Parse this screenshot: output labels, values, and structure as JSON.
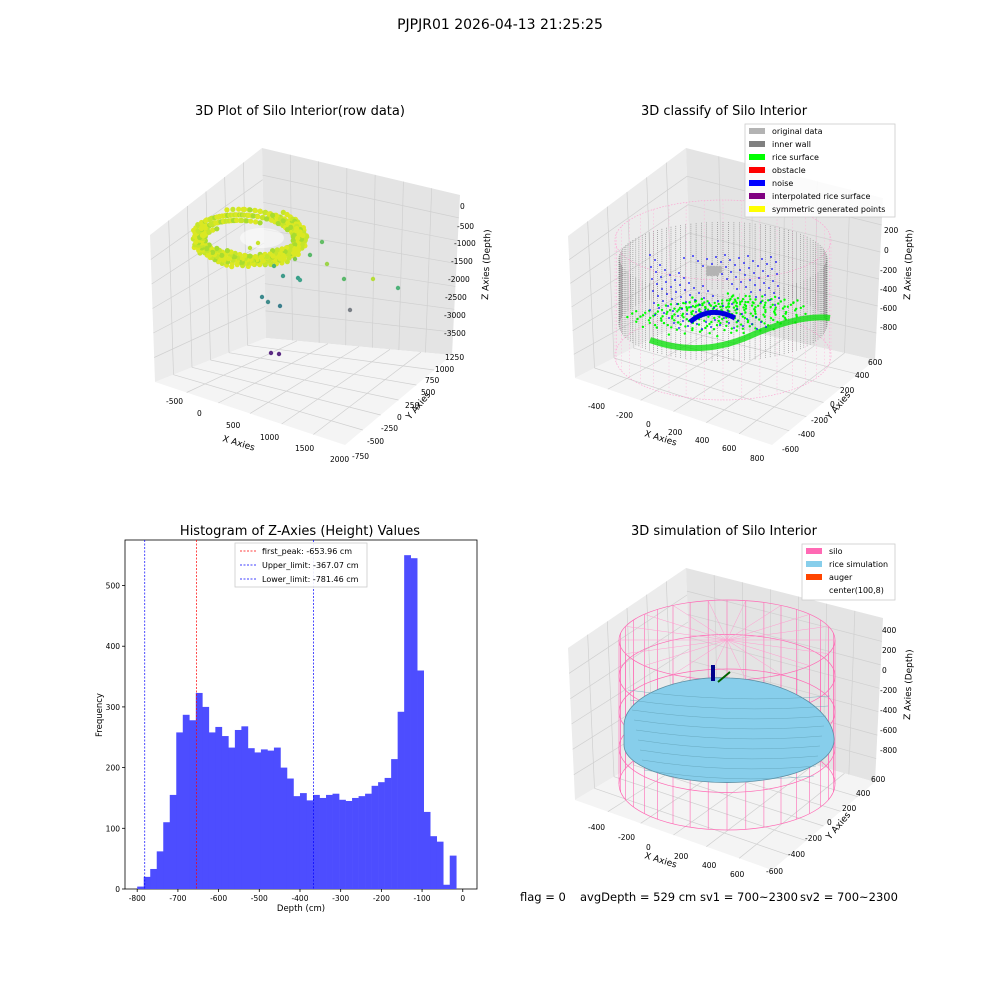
{
  "figure": {
    "suptitle": "PJPJR01 2026-04-13 21:25:25",
    "status": {
      "flag": "flag = 0",
      "avg": "avgDepth = 529 cm",
      "sv1": "sv1 = 700~2300",
      "sv2": "sv2 = 700~2300"
    }
  },
  "chart_data": [
    {
      "type": "scatter",
      "title": "3D Plot of Silo Interior(row data)",
      "xlabel": "X Axies",
      "ylabel": "Y Axies",
      "zlabel": "Z Axies (Depth)",
      "x_ticks": [
        "-500",
        "0",
        "500",
        "1000",
        "1500",
        "2000"
      ],
      "y_ticks": [
        "-750",
        "-500",
        "-250",
        "0",
        "250",
        "500",
        "750",
        "1000",
        "1250"
      ],
      "z_ticks": [
        "0",
        "-500",
        "-1000",
        "-1500",
        "-2000",
        "-2500",
        "-3000",
        "-3500"
      ],
      "colormap": "viridis",
      "note_colors": {
        "high": "#d6e81f",
        "mid": "#5ab86a",
        "low": "#4a2a7a"
      }
    },
    {
      "type": "scatter",
      "title": "3D classify of Silo Interior",
      "xlabel": "X Axies",
      "ylabel": "Y Axies",
      "zlabel": "Z Axies (Depth)",
      "x_ticks": [
        "-400",
        "-200",
        "0",
        "200",
        "400",
        "600",
        "800"
      ],
      "y_ticks": [
        "-600",
        "-400",
        "-200",
        "0",
        "200",
        "400",
        "600"
      ],
      "z_ticks": [
        "200",
        "0",
        "-200",
        "-400",
        "-600",
        "-800"
      ],
      "legend": [
        {
          "label": "original data",
          "color": "#b3b3b3"
        },
        {
          "label": "inner wall",
          "color": "#808080"
        },
        {
          "label": "rice surface",
          "color": "#00ff00"
        },
        {
          "label": "obstacle",
          "color": "#ff0000"
        },
        {
          "label": "noise",
          "color": "#0000ff"
        },
        {
          "label": "interpolated rice surface",
          "color": "#800080"
        },
        {
          "label": "symmetric generated points",
          "color": "#ffff00"
        }
      ]
    },
    {
      "type": "bar",
      "title": "Histogram of Z-Axies (Height) Values",
      "xlabel": "Depth (cm)",
      "ylabel": "Frequency",
      "bin_start": -800,
      "bin_width": 16,
      "values": [
        4,
        20,
        33,
        62,
        110,
        155,
        258,
        287,
        278,
        323,
        300,
        258,
        267,
        252,
        233,
        262,
        268,
        232,
        225,
        230,
        228,
        233,
        200,
        182,
        153,
        158,
        146,
        155,
        150,
        155,
        157,
        147,
        145,
        150,
        153,
        157,
        170,
        176,
        183,
        214,
        292,
        550,
        545,
        360,
        127,
        87,
        78,
        7,
        55
      ],
      "xlim": [
        -830,
        35
      ],
      "ylim": [
        0,
        575
      ],
      "x_ticks": [
        -800,
        -700,
        -600,
        -500,
        -400,
        -300,
        -200,
        -100,
        0
      ],
      "y_ticks": [
        0,
        100,
        200,
        300,
        400,
        500
      ],
      "bar_color": "#4d4dff",
      "lines": [
        {
          "label": "first_peak: -653.96 cm",
          "x": -653.96,
          "color": "#ff0000"
        },
        {
          "label": "Upper_limit: -367.07 cm",
          "x": -367.07,
          "color": "#0000ff"
        },
        {
          "label": "Lower_limit: -781.46 cm",
          "x": -781.46,
          "color": "#0000ff"
        }
      ],
      "legend_position": "top-center"
    },
    {
      "type": "scatter",
      "title": "3D simulation of Silo Interior",
      "xlabel": "X Axies",
      "ylabel": "Y Axies",
      "zlabel": "Z Axies (Depth)",
      "x_ticks": [
        "-400",
        "-200",
        "0",
        "200",
        "400",
        "600"
      ],
      "y_ticks": [
        "-600",
        "-400",
        "-200",
        "0",
        "200",
        "400",
        "600"
      ],
      "z_ticks": [
        "400",
        "200",
        "0",
        "-200",
        "-400",
        "-600",
        "-800"
      ],
      "legend": [
        {
          "label": "silo",
          "color": "#ff69b4"
        },
        {
          "label": "rice simulation",
          "color": "#87ceeb"
        },
        {
          "label": "auger",
          "color": "#ff4500"
        },
        {
          "label": "center(100,8)",
          "color": "#ffffff"
        }
      ]
    }
  ]
}
